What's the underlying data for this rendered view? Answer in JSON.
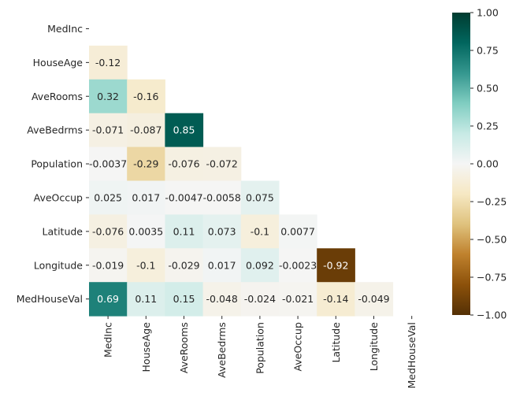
{
  "chart_data": {
    "type": "heatmap",
    "variables": [
      "MedInc",
      "HouseAge",
      "AveRooms",
      "AveBedrms",
      "Population",
      "AveOccup",
      "Latitude",
      "Longitude",
      "MedHouseVal"
    ],
    "mask": "upper-triangle-including-diagonal",
    "values": [
      [
        null,
        null,
        null,
        null,
        null,
        null,
        null,
        null,
        null
      ],
      [
        -0.12,
        null,
        null,
        null,
        null,
        null,
        null,
        null,
        null
      ],
      [
        0.32,
        -0.16,
        null,
        null,
        null,
        null,
        null,
        null,
        null
      ],
      [
        -0.071,
        -0.087,
        0.85,
        null,
        null,
        null,
        null,
        null,
        null
      ],
      [
        -0.0037,
        -0.29,
        -0.076,
        -0.072,
        null,
        null,
        null,
        null,
        null
      ],
      [
        0.025,
        0.017,
        -0.0047,
        -0.0058,
        0.075,
        null,
        null,
        null,
        null
      ],
      [
        -0.076,
        0.0035,
        0.11,
        0.073,
        -0.1,
        0.0077,
        null,
        null,
        null
      ],
      [
        -0.019,
        -0.1,
        -0.029,
        0.017,
        0.092,
        -0.0023,
        -0.92,
        null,
        null
      ],
      [
        0.69,
        0.11,
        0.15,
        -0.048,
        -0.024,
        -0.021,
        -0.14,
        -0.049,
        null
      ]
    ],
    "annotations": [
      [
        "",
        "",
        "",
        "",
        "",
        "",
        "",
        "",
        ""
      ],
      [
        "-0.12",
        "",
        "",
        "",
        "",
        "",
        "",
        "",
        ""
      ],
      [
        "0.32",
        "-0.16",
        "",
        "",
        "",
        "",
        "",
        "",
        ""
      ],
      [
        "-0.071",
        "-0.087",
        "0.85",
        "",
        "",
        "",
        "",
        "",
        ""
      ],
      [
        "-0.0037",
        "-0.29",
        "-0.076",
        "-0.072",
        "",
        "",
        "",
        "",
        ""
      ],
      [
        "0.025",
        "0.017",
        "-0.0047",
        "-0.0058",
        "0.075",
        "",
        "",
        "",
        ""
      ],
      [
        "-0.076",
        "0.0035",
        "0.11",
        "0.073",
        "-0.1",
        "0.0077",
        "",
        "",
        ""
      ],
      [
        "-0.019",
        "-0.1",
        "-0.029",
        "0.017",
        "0.092",
        "-0.0023",
        "-0.92",
        "",
        ""
      ],
      [
        "0.69",
        "0.11",
        "0.15",
        "-0.048",
        "-0.024",
        "-0.021",
        "-0.14",
        "-0.049",
        ""
      ]
    ],
    "colormap": "BrBG",
    "vmin": -1.0,
    "vmax": 1.0,
    "colorbar_ticks": [
      1.0,
      0.75,
      0.5,
      0.25,
      0.0,
      -0.25,
      -0.5,
      -0.75,
      -1.0
    ],
    "colorbar_tick_labels": [
      "1.00",
      "0.75",
      "0.50",
      "0.25",
      "0.00",
      "−0.25",
      "−0.50",
      "−0.75",
      "−1.00"
    ],
    "colormap_stops": [
      {
        "v": -1.0,
        "color": "#543005"
      },
      {
        "v": -0.8,
        "color": "#8c510a"
      },
      {
        "v": -0.6,
        "color": "#bf812d"
      },
      {
        "v": -0.4,
        "color": "#dfc27d"
      },
      {
        "v": -0.2,
        "color": "#f6e8c3"
      },
      {
        "v": 0.0,
        "color": "#f5f5f5"
      },
      {
        "v": 0.2,
        "color": "#c7eae5"
      },
      {
        "v": 0.4,
        "color": "#80cdc1"
      },
      {
        "v": 0.6,
        "color": "#35978f"
      },
      {
        "v": 0.8,
        "color": "#01665e"
      },
      {
        "v": 1.0,
        "color": "#003c30"
      }
    ]
  }
}
